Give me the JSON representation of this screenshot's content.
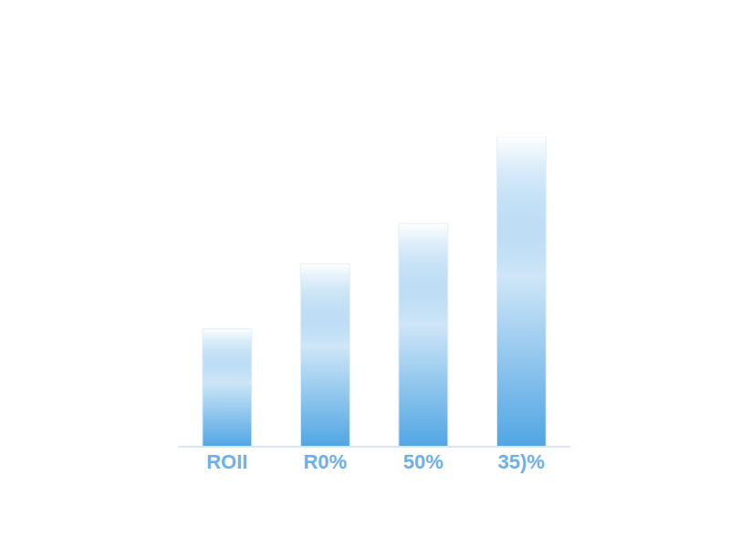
{
  "chart_data": {
    "type": "bar",
    "categories": [
      "ROII",
      "R0%",
      "50%",
      "35)%"
    ],
    "values": [
      38,
      59,
      72,
      100
    ],
    "color": "#3d9be0",
    "ylim": [
      0,
      100
    ],
    "tick_labels": "x",
    "grid": false
  }
}
